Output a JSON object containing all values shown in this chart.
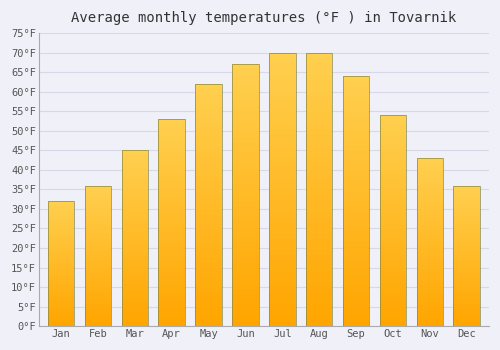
{
  "title": "Average monthly temperatures (°F ) in Tovarnik",
  "months": [
    "Jan",
    "Feb",
    "Mar",
    "Apr",
    "May",
    "Jun",
    "Jul",
    "Aug",
    "Sep",
    "Oct",
    "Nov",
    "Dec"
  ],
  "values": [
    32,
    36,
    45,
    53,
    62,
    67,
    70,
    70,
    64,
    54,
    43,
    36
  ],
  "bar_color_main": "#FFA500",
  "bar_color_light": "#FFD050",
  "bar_edge_color": "#888844",
  "ylim": [
    0,
    75
  ],
  "ytick_step": 5,
  "background_color": "#f0f0f8",
  "plot_bg_color": "#f0f0f8",
  "grid_color": "#d8d8e8",
  "title_fontsize": 10,
  "tick_fontsize": 7.5,
  "font_family": "monospace",
  "title_color": "#333333",
  "tick_color": "#555555"
}
